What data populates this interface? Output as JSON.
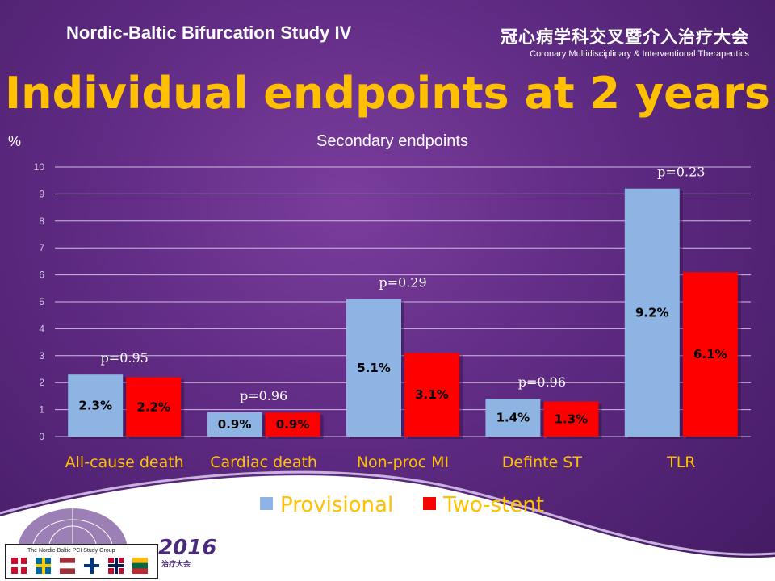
{
  "header": {
    "study_name": "Nordic-Baltic Bifurcation Study IV",
    "brand_cn": "冠心病学科交叉暨介入治疗大会",
    "brand_en": "Coronary Multidisciplinary & Interventional Therapeutics",
    "title": "Individual endpoints at 2 years"
  },
  "footer": {
    "logo_year": "2016",
    "logo_cn": "治疗大会",
    "group_label": "The Nordic-Baltic PCI Study Group",
    "flags": [
      "denmark-flag",
      "sweden-flag",
      "latvia-flag",
      "finland-flag",
      "norway-flag",
      "lithuania-flag"
    ]
  },
  "chart_data": {
    "type": "bar",
    "title": "Secondary endpoints",
    "ylabel": "%",
    "ylim": [
      0,
      10
    ],
    "yticks": [
      "0",
      "1",
      "2",
      "3",
      "4",
      "5",
      "6",
      "7",
      "8",
      "9",
      "10"
    ],
    "grid": true,
    "legend_position": "bottom",
    "categories": [
      "All-cause death",
      "Cardiac death",
      "Non-proc MI",
      "Definte ST",
      "TLR"
    ],
    "series": [
      {
        "name": "Provisional",
        "color": "#8db4e2",
        "values": [
          2.3,
          0.9,
          5.1,
          1.4,
          9.2
        ],
        "labels": [
          "2.3%",
          "0.9%",
          "5.1%",
          "1.4%",
          "9.2%"
        ]
      },
      {
        "name": "Two-stent",
        "color": "#ff0000",
        "values": [
          2.2,
          0.9,
          3.1,
          1.3,
          6.1
        ],
        "labels": [
          "2.2%",
          "0.9%",
          "3.1%",
          "1.3%",
          "6.1%"
        ]
      }
    ],
    "p_values": [
      "p=0.95",
      "p=0.96",
      "p=0.29",
      "p=0.96",
      "p=0.23"
    ]
  }
}
